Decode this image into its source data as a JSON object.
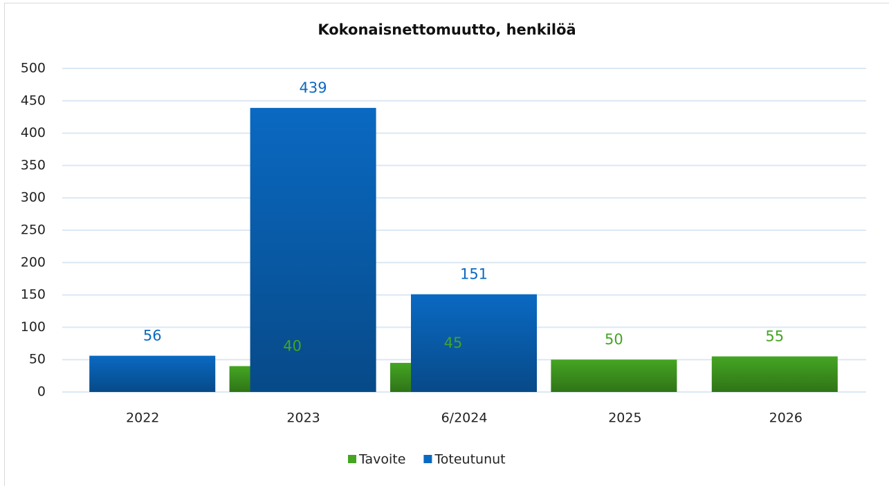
{
  "chart_data": {
    "type": "bar",
    "title": "Kokonaisnettomuutto, henkilöä",
    "categories": [
      "2022",
      "2023",
      "6/2024",
      "2025",
      "2026"
    ],
    "series": [
      {
        "name": "Tavoite",
        "color": "#44a522",
        "values": [
          null,
          40,
          45,
          50,
          55
        ]
      },
      {
        "name": "Toteutunut",
        "color": "#0a69c2",
        "values": [
          56,
          439,
          151,
          null,
          null
        ]
      }
    ],
    "ylim": [
      0,
      500
    ],
    "yticks": [
      0,
      50,
      100,
      150,
      200,
      250,
      300,
      350,
      400,
      450,
      500
    ],
    "grid": true,
    "legend": "bottom"
  }
}
